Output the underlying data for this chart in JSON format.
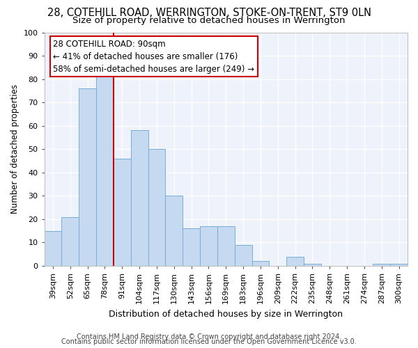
{
  "title1": "28, COTEHILL ROAD, WERRINGTON, STOKE-ON-TRENT, ST9 0LN",
  "title2": "Size of property relative to detached houses in Werrington",
  "xlabel": "Distribution of detached houses by size in Werrington",
  "ylabel": "Number of detached properties",
  "categories": [
    "39sqm",
    "52sqm",
    "65sqm",
    "78sqm",
    "91sqm",
    "104sqm",
    "117sqm",
    "130sqm",
    "143sqm",
    "156sqm",
    "169sqm",
    "183sqm",
    "196sqm",
    "209sqm",
    "222sqm",
    "235sqm",
    "248sqm",
    "261sqm",
    "274sqm",
    "287sqm",
    "300sqm"
  ],
  "values": [
    15,
    21,
    76,
    81,
    46,
    58,
    50,
    30,
    16,
    17,
    17,
    9,
    2,
    0,
    4,
    1,
    0,
    0,
    0,
    1,
    1
  ],
  "bar_color": "#c5d9f0",
  "bar_edge_color": "#7aadd4",
  "vline_color": "#cc0000",
  "annotation_text_line1": "28 COTEHILL ROAD: 90sqm",
  "annotation_text_line2": "← 41% of detached houses are smaller (176)",
  "annotation_text_line3": "58% of semi-detached houses are larger (249) →",
  "ylim": [
    0,
    100
  ],
  "yticks": [
    0,
    10,
    20,
    30,
    40,
    50,
    60,
    70,
    80,
    90,
    100
  ],
  "footer1": "Contains HM Land Registry data © Crown copyright and database right 2024.",
  "footer2": "Contains public sector information licensed under the Open Government Licence v3.0.",
  "bg_color": "#eef2fa",
  "grid_color": "#ffffff",
  "title1_fontsize": 10.5,
  "title2_fontsize": 9.5,
  "xlabel_fontsize": 9,
  "ylabel_fontsize": 8.5,
  "tick_fontsize": 8,
  "footer_fontsize": 7,
  "annot_fontsize": 8.5
}
